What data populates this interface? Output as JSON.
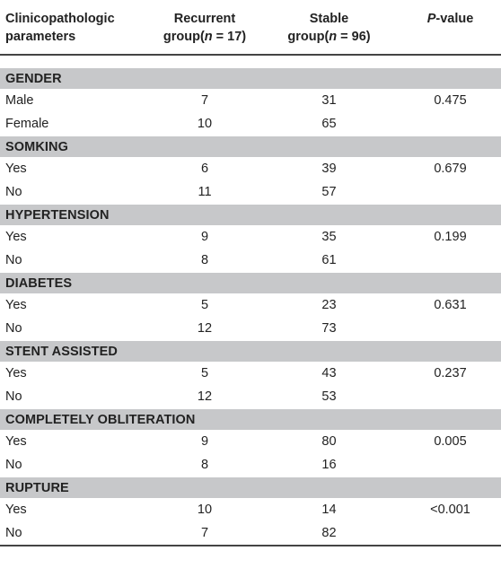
{
  "header": {
    "col1_line1": "Clinicopathologic",
    "col1_line2": "parameters",
    "col2_line1": "Recurrent",
    "col2_line2_pre": "group(",
    "col2_n": "n",
    "col2_line2_post": " = 17)",
    "col3_line1": "Stable",
    "col3_line2_pre": "group(",
    "col3_n": "n",
    "col3_line2_post": " = 96)",
    "col4_p": "P",
    "col4_rest": "-value"
  },
  "sections": [
    {
      "title": "GENDER",
      "rows": [
        {
          "label": "Male",
          "recurrent": "7",
          "stable": "31",
          "p": "0.475"
        },
        {
          "label": "Female",
          "recurrent": "10",
          "stable": "65",
          "p": ""
        }
      ]
    },
    {
      "title": "SOMKING",
      "rows": [
        {
          "label": "Yes",
          "recurrent": "6",
          "stable": "39",
          "p": "0.679"
        },
        {
          "label": "No",
          "recurrent": "11",
          "stable": "57",
          "p": ""
        }
      ]
    },
    {
      "title": "HYPERTENSION",
      "rows": [
        {
          "label": "Yes",
          "recurrent": "9",
          "stable": "35",
          "p": "0.199"
        },
        {
          "label": "No",
          "recurrent": "8",
          "stable": "61",
          "p": ""
        }
      ]
    },
    {
      "title": "DIABETES",
      "rows": [
        {
          "label": "Yes",
          "recurrent": "5",
          "stable": "23",
          "p": "0.631"
        },
        {
          "label": "No",
          "recurrent": "12",
          "stable": "73",
          "p": ""
        }
      ]
    },
    {
      "title": "STENT ASSISTED",
      "rows": [
        {
          "label": "Yes",
          "recurrent": "5",
          "stable": "43",
          "p": "0.237"
        },
        {
          "label": "No",
          "recurrent": "12",
          "stable": "53",
          "p": ""
        }
      ]
    },
    {
      "title": "COMPLETELY OBLITERATION",
      "rows": [
        {
          "label": "Yes",
          "recurrent": "9",
          "stable": "80",
          "p": "0.005"
        },
        {
          "label": "No",
          "recurrent": "8",
          "stable": "16",
          "p": ""
        }
      ]
    },
    {
      "title": "RUPTURE",
      "rows": [
        {
          "label": "Yes",
          "recurrent": "10",
          "stable": "14",
          "p": "<0.001"
        },
        {
          "label": "No",
          "recurrent": "7",
          "stable": "82",
          "p": ""
        }
      ]
    }
  ]
}
